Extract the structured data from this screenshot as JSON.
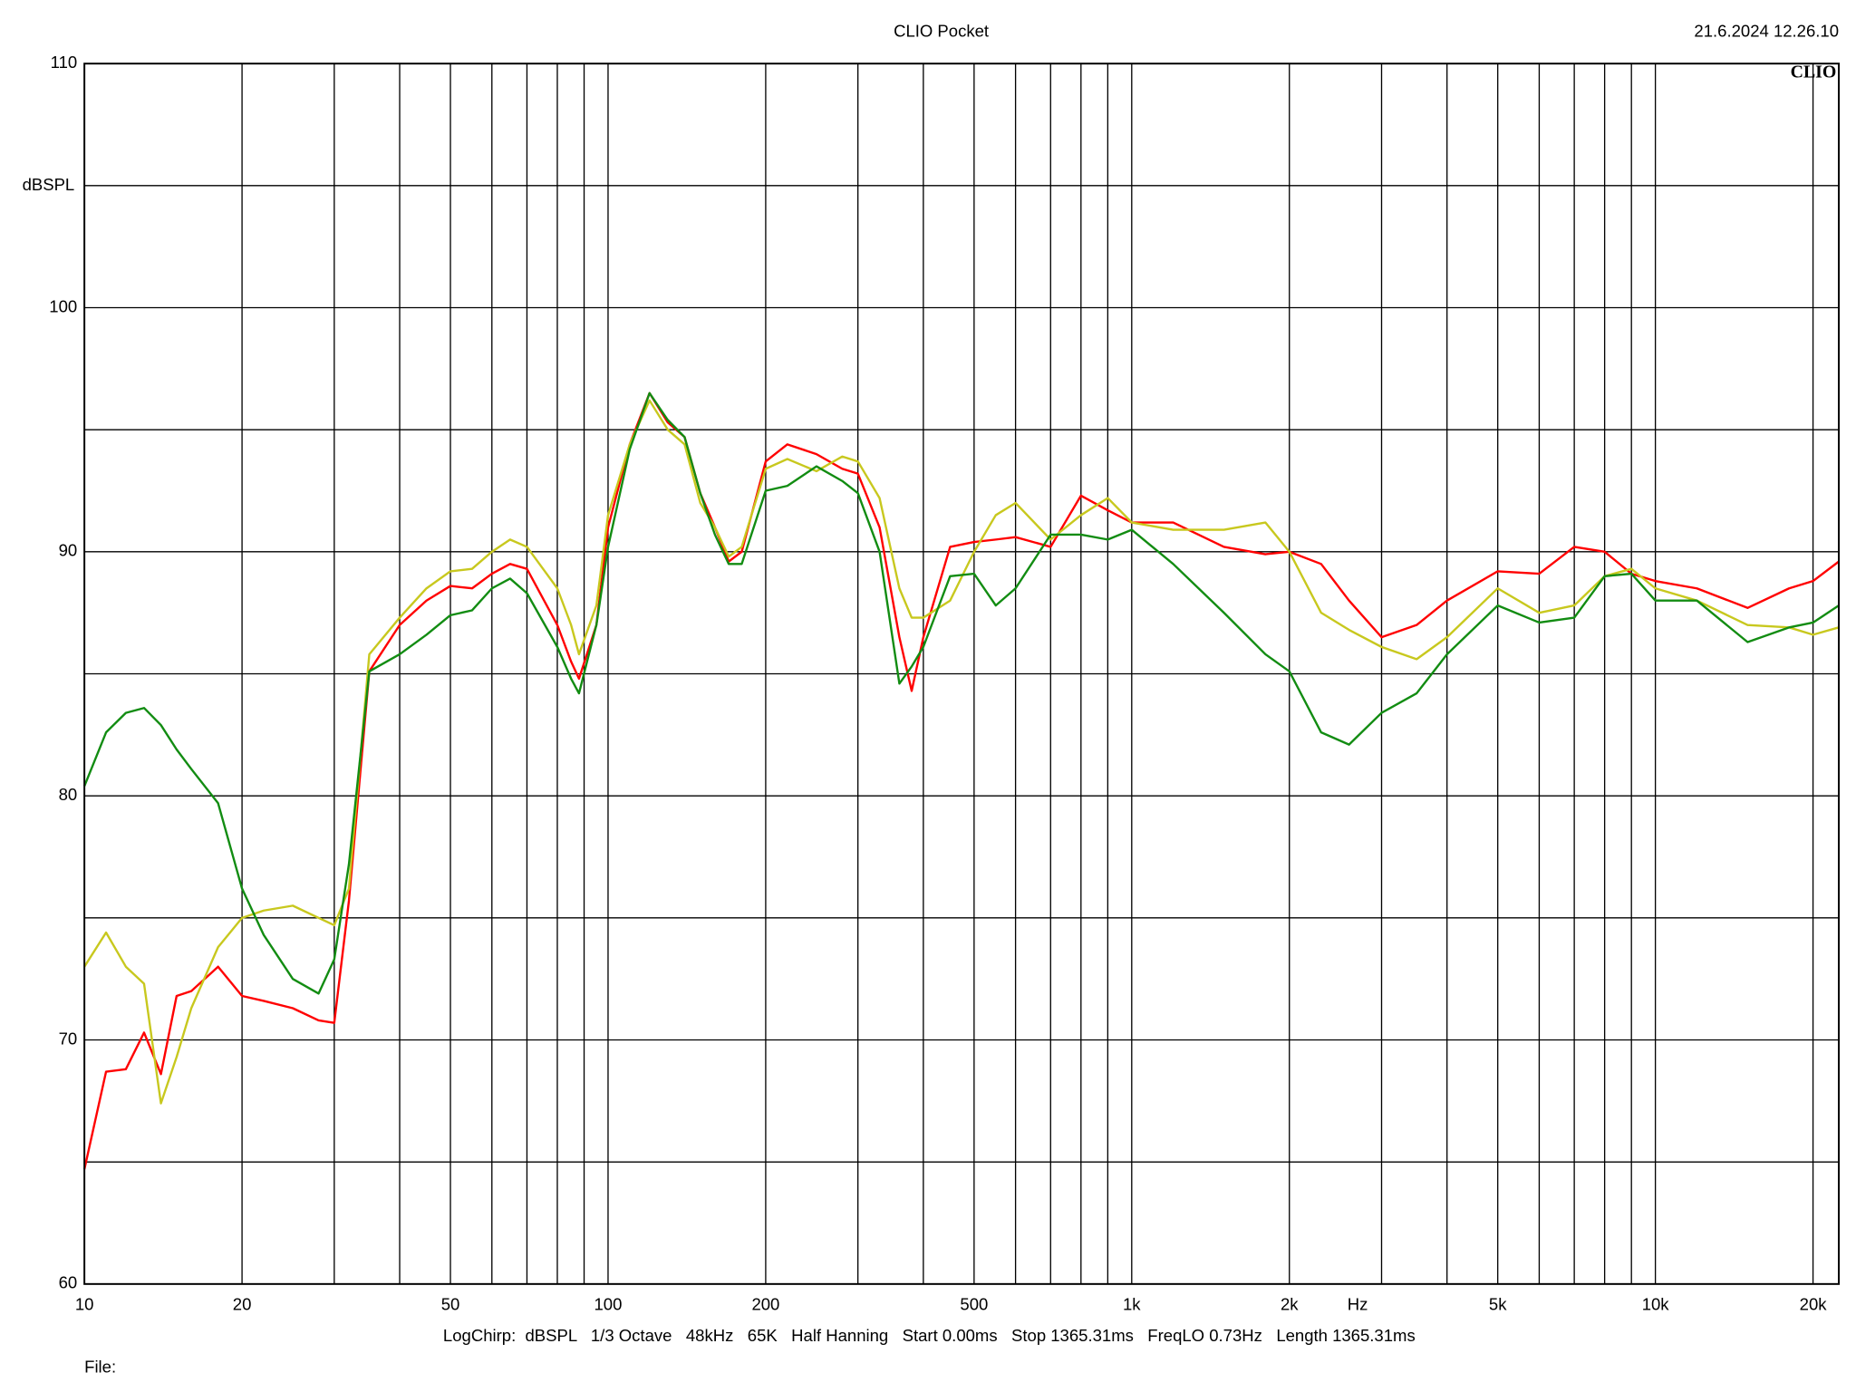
{
  "chart_data": {
    "type": "line",
    "title": "CLIO Pocket",
    "timestamp": "21.6.2024 12.26.10",
    "logo": "CLIO",
    "y_label": "dBSPL",
    "x_label": "Hz",
    "settings_line": "LogChirp:  dBSPL   1/3 Octave   48kHz   65K   Half Hanning   Start 0.00ms   Stop 1365.31ms   FreqLO 0.73Hz   Length 1365.31ms",
    "file_label": "File:",
    "log_x": true,
    "grid": true,
    "xlim": [
      10,
      22400
    ],
    "ylim": [
      60,
      110
    ],
    "xticks": [
      10,
      20,
      50,
      100,
      200,
      500,
      {
        "value": 1000,
        "label": "1k"
      },
      {
        "value": 2000,
        "label": "2k"
      },
      {
        "value": 5000,
        "label": "5k"
      },
      {
        "value": 10000,
        "label": "10k"
      },
      {
        "value": 20000,
        "label": "20k"
      }
    ],
    "x_minor_ticks": [
      30,
      40,
      60,
      70,
      80,
      90,
      300,
      400,
      600,
      700,
      800,
      900,
      3000,
      4000,
      6000,
      7000,
      8000,
      9000
    ],
    "yticks": [
      60,
      70,
      80,
      90,
      100,
      110
    ],
    "y_minor_ticks": [
      65,
      75,
      85,
      95,
      105
    ],
    "x": [
      10,
      11,
      12,
      13,
      14,
      15,
      16,
      18,
      20,
      22,
      25,
      28,
      30,
      32,
      35,
      40,
      45,
      50,
      55,
      60,
      65,
      70,
      80,
      85,
      88,
      95,
      100,
      110,
      120,
      130,
      140,
      150,
      160,
      170,
      180,
      200,
      220,
      250,
      280,
      300,
      330,
      360,
      380,
      400,
      450,
      500,
      550,
      600,
      700,
      800,
      900,
      1000,
      1200,
      1500,
      1800,
      2000,
      2300,
      2600,
      3000,
      3500,
      4000,
      5000,
      6000,
      7000,
      8000,
      9000,
      10000,
      12000,
      15000,
      18000,
      20000,
      22400
    ],
    "series": [
      {
        "color": "#ff0000",
        "values": [
          64.7,
          68.7,
          68.8,
          70.3,
          68.6,
          71.8,
          72.0,
          73.0,
          71.8,
          71.6,
          71.3,
          70.8,
          70.7,
          75.7,
          85.1,
          87.0,
          88.0,
          88.6,
          88.5,
          89.1,
          89.5,
          89.3,
          87.0,
          85.5,
          84.8,
          87.0,
          91.0,
          94.4,
          96.5,
          95.3,
          94.7,
          92.4,
          91.0,
          89.6,
          90.0,
          93.7,
          94.4,
          94.0,
          93.4,
          93.2,
          91.0,
          86.5,
          84.3,
          86.5,
          90.2,
          90.4,
          90.5,
          90.6,
          90.2,
          92.3,
          91.7,
          91.2,
          91.2,
          90.2,
          89.9,
          90.0,
          89.5,
          88.0,
          86.5,
          87.0,
          88.0,
          89.2,
          89.1,
          90.2,
          90.0,
          89.1,
          88.8,
          88.5,
          87.7,
          88.5,
          88.8,
          89.6
        ]
      },
      {
        "color": "#c8c81e",
        "values": [
          73.0,
          74.4,
          73.0,
          72.3,
          67.4,
          69.3,
          71.3,
          73.8,
          75.0,
          75.3,
          75.5,
          75.0,
          74.7,
          76.2,
          85.8,
          87.3,
          88.5,
          89.2,
          89.3,
          90.0,
          90.5,
          90.2,
          88.5,
          87.0,
          85.8,
          87.8,
          91.5,
          94.4,
          96.2,
          95.0,
          94.4,
          92.0,
          91.0,
          89.8,
          90.2,
          93.4,
          93.8,
          93.3,
          93.9,
          93.7,
          92.2,
          88.5,
          87.3,
          87.3,
          88.0,
          90.0,
          91.5,
          92.0,
          90.5,
          91.5,
          92.2,
          91.2,
          90.9,
          90.9,
          91.2,
          90.0,
          87.5,
          86.8,
          86.1,
          85.6,
          86.5,
          88.5,
          87.5,
          87.8,
          89.0,
          89.3,
          88.5,
          88.0,
          87.0,
          86.9,
          86.6,
          86.9
        ]
      },
      {
        "color": "#128c12",
        "values": [
          80.4,
          82.6,
          83.4,
          83.6,
          82.9,
          81.9,
          81.1,
          79.7,
          76.2,
          74.3,
          72.5,
          71.9,
          73.3,
          77.2,
          85.1,
          85.8,
          86.6,
          87.4,
          87.6,
          88.5,
          88.9,
          88.3,
          86.1,
          84.8,
          84.2,
          87.0,
          90.2,
          94.2,
          96.5,
          95.4,
          94.7,
          92.4,
          90.7,
          89.5,
          89.5,
          92.5,
          92.7,
          93.5,
          92.9,
          92.4,
          90.0,
          84.6,
          85.3,
          86.1,
          89.0,
          89.1,
          87.8,
          88.5,
          90.7,
          90.7,
          90.5,
          90.9,
          89.5,
          87.5,
          85.8,
          85.1,
          82.6,
          82.1,
          83.4,
          84.2,
          85.8,
          87.8,
          87.1,
          87.3,
          89.0,
          89.1,
          88.0,
          88.0,
          86.3,
          86.9,
          87.1,
          87.8
        ]
      }
    ]
  }
}
